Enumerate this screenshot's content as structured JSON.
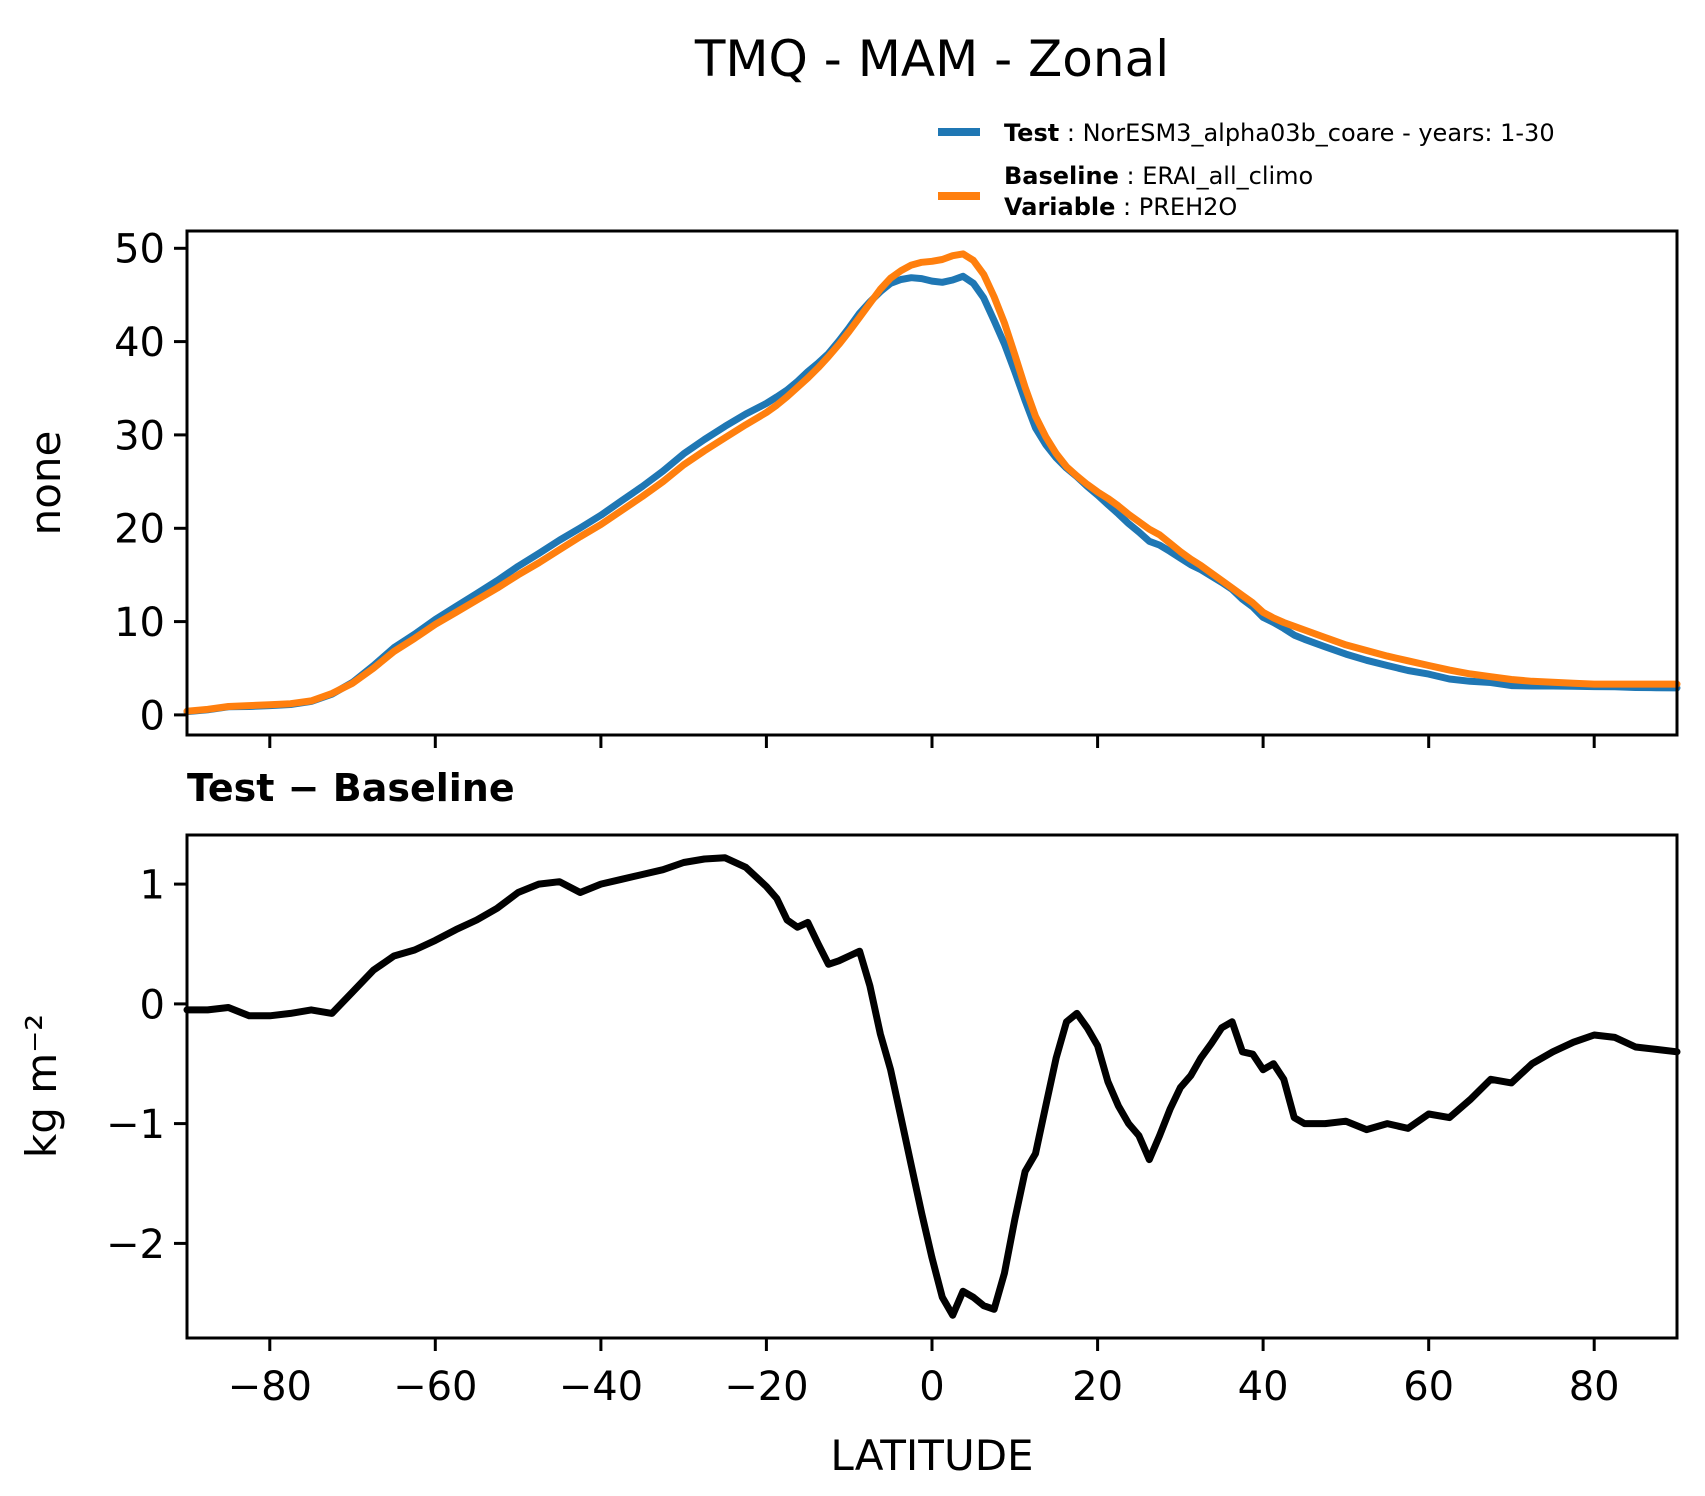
{
  "figure": {
    "title": "TMQ - MAM - Zonal",
    "panel2_title": "Test − Baseline",
    "xlabel": "LATITUDE",
    "ylabel_top": "none",
    "ylabel_bottom": "kg m⁻²"
  },
  "legend": {
    "test": {
      "label": "Test",
      "text": " : NorESM3_alpha03b_coare - years: 1-30",
      "color": "#1f77b4"
    },
    "baseline": {
      "label": "Baseline",
      "text": " : ERAI_all_climo",
      "color": "#ff7f0e"
    },
    "variable": {
      "label": "Variable",
      "text": " : PREH2O"
    }
  },
  "chart_data": {
    "type": "line",
    "xlabel": "LATITUDE",
    "xlim": [
      -90,
      90
    ],
    "xticks": [
      -80,
      -60,
      -40,
      -20,
      0,
      20,
      40,
      60,
      80
    ],
    "x": [
      -90,
      -87.5,
      -85,
      -82.5,
      -80,
      -77.5,
      -75,
      -72.5,
      -70,
      -67.5,
      -65,
      -62.5,
      -60,
      -57.5,
      -55,
      -52.5,
      -50,
      -47.5,
      -45,
      -42.5,
      -40,
      -37.5,
      -35,
      -32.5,
      -30,
      -27.5,
      -25,
      -22.5,
      -20,
      -18.75,
      -17.5,
      -16.25,
      -15,
      -13.75,
      -12.5,
      -11.25,
      -10,
      -8.75,
      -7.5,
      -6.25,
      -5,
      -3.75,
      -2.5,
      -1.25,
      0,
      1.25,
      2.5,
      3.75,
      5,
      6.25,
      7.5,
      8.75,
      10,
      11.25,
      12.5,
      13.75,
      15,
      16.25,
      17.5,
      18.75,
      20,
      21.25,
      22.5,
      23.75,
      25,
      26.25,
      27.5,
      28.75,
      30,
      31.25,
      32.5,
      33.75,
      35,
      36.25,
      37.5,
      38.75,
      40,
      41.25,
      42.5,
      43.75,
      45,
      47.5,
      50,
      52.5,
      55,
      57.5,
      60,
      62.5,
      65,
      67.5,
      70,
      72.5,
      75,
      77.5,
      80,
      82.5,
      85,
      87.5,
      90
    ],
    "panels": [
      {
        "name": "zonal-mean",
        "ylabel": "none",
        "ylim": [
          -2.15,
          51.85
        ],
        "yticks": [
          0,
          10,
          20,
          30,
          40,
          50
        ],
        "xticklabels": false
      },
      {
        "name": "difference",
        "title": "Test − Baseline",
        "ylabel": "kg m⁻²",
        "ylim": [
          -2.79,
          1.41
        ],
        "yticks": [
          1,
          0,
          -1,
          -2
        ],
        "xticklabels": true
      }
    ],
    "series": [
      {
        "name": "Test",
        "panel": 0,
        "color": "#1f77b4",
        "values": [
          0.35,
          0.55,
          0.87,
          0.9,
          1.0,
          1.12,
          1.45,
          2.22,
          3.5,
          5.28,
          7.2,
          8.65,
          10.23,
          11.62,
          13.0,
          14.4,
          15.93,
          17.3,
          18.72,
          20.03,
          21.4,
          22.94,
          24.48,
          26.12,
          27.98,
          29.51,
          30.92,
          32.24,
          33.38,
          34.08,
          34.8,
          35.74,
          36.78,
          37.7,
          38.73,
          40.06,
          41.5,
          43.04,
          44.25,
          45.35,
          46.25,
          46.65,
          46.85,
          46.75,
          46.48,
          46.35,
          46.6,
          47.0,
          46.25,
          44.68,
          42.25,
          39.75,
          36.8,
          33.7,
          30.75,
          28.95,
          27.55,
          26.45,
          25.52,
          24.5,
          23.55,
          22.55,
          21.55,
          20.5,
          19.6,
          18.6,
          18.2,
          17.52,
          16.8,
          16.1,
          15.55,
          14.87,
          14.2,
          13.45,
          12.4,
          11.58,
          10.45,
          9.9,
          9.27,
          8.55,
          8.1,
          7.3,
          6.52,
          5.85,
          5.3,
          4.76,
          4.38,
          3.85,
          3.6,
          3.47,
          3.14,
          3.1,
          3.1,
          3.08,
          3.04,
          3.02,
          2.94,
          2.92,
          2.9
        ]
      },
      {
        "name": "Baseline",
        "panel": 0,
        "color": "#ff7f0e",
        "values": [
          0.4,
          0.6,
          0.9,
          1.0,
          1.1,
          1.2,
          1.5,
          2.3,
          3.4,
          5.0,
          6.8,
          8.2,
          9.7,
          11.0,
          12.3,
          13.6,
          15.0,
          16.3,
          17.7,
          19.1,
          20.4,
          21.9,
          23.4,
          25.0,
          26.8,
          28.3,
          29.7,
          31.1,
          32.4,
          33.2,
          34.1,
          35.1,
          36.1,
          37.2,
          38.4,
          39.7,
          41.1,
          42.6,
          44.1,
          45.6,
          46.8,
          47.6,
          48.2,
          48.5,
          48.6,
          48.8,
          49.2,
          49.4,
          48.7,
          47.2,
          44.8,
          42.0,
          38.6,
          35.1,
          32.0,
          29.8,
          28.0,
          26.6,
          25.6,
          24.7,
          23.9,
          23.2,
          22.4,
          21.5,
          20.7,
          19.9,
          19.3,
          18.4,
          17.5,
          16.7,
          16.0,
          15.2,
          14.4,
          13.6,
          12.8,
          12.0,
          11.0,
          10.4,
          9.9,
          9.5,
          9.1,
          8.3,
          7.5,
          6.9,
          6.3,
          5.8,
          5.3,
          4.8,
          4.4,
          4.1,
          3.8,
          3.6,
          3.5,
          3.4,
          3.3,
          3.3,
          3.3,
          3.3,
          3.3
        ]
      },
      {
        "name": "Test - Baseline",
        "panel": 1,
        "color": "#000000",
        "values": [
          -0.05,
          -0.05,
          -0.03,
          -0.1,
          -0.1,
          -0.08,
          -0.05,
          -0.08,
          0.1,
          0.28,
          0.4,
          0.45,
          0.53,
          0.62,
          0.7,
          0.8,
          0.93,
          1.0,
          1.02,
          0.93,
          1.0,
          1.04,
          1.08,
          1.12,
          1.18,
          1.21,
          1.22,
          1.14,
          0.98,
          0.88,
          0.7,
          0.64,
          0.68,
          0.5,
          0.33,
          0.36,
          0.4,
          0.44,
          0.15,
          -0.25,
          -0.55,
          -0.95,
          -1.35,
          -1.75,
          -2.12,
          -2.45,
          -2.6,
          -2.4,
          -2.45,
          -2.52,
          -2.55,
          -2.25,
          -1.8,
          -1.4,
          -1.25,
          -0.85,
          -0.45,
          -0.15,
          -0.08,
          -0.2,
          -0.35,
          -0.65,
          -0.85,
          -1.0,
          -1.1,
          -1.3,
          -1.1,
          -0.88,
          -0.7,
          -0.6,
          -0.45,
          -0.33,
          -0.2,
          -0.15,
          -0.4,
          -0.42,
          -0.55,
          -0.5,
          -0.63,
          -0.95,
          -1.0,
          -1.0,
          -0.98,
          -1.05,
          -1.0,
          -1.04,
          -0.92,
          -0.95,
          -0.8,
          -0.63,
          -0.66,
          -0.5,
          -0.4,
          -0.32,
          -0.26,
          -0.28,
          -0.36,
          -0.38,
          -0.4
        ]
      }
    ]
  }
}
